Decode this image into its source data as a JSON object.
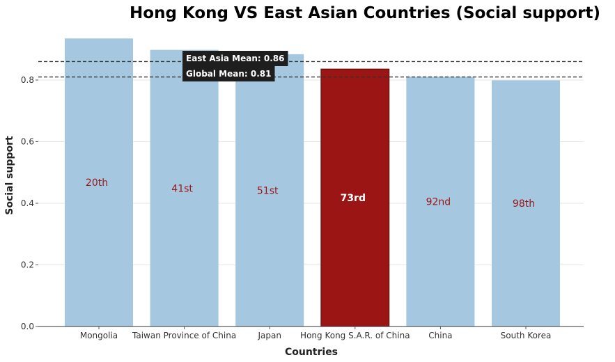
{
  "chart_data": {
    "type": "bar",
    "title": "Hong Kong VS East Asian Countries (Social support)",
    "xlabel": "Countries",
    "ylabel": "Social support",
    "categories": [
      "Mongolia",
      "Taiwan Province of China",
      "Japan",
      "Hong Kong S.A.R. of China",
      "China",
      "South Korea"
    ],
    "values": [
      0.935,
      0.898,
      0.884,
      0.836,
      0.811,
      0.799
    ],
    "ranks": [
      "20th",
      "41st",
      "51st",
      "73rd",
      "92nd",
      "98th"
    ],
    "highlight": "Hong Kong S.A.R. of China",
    "ylim": [
      0,
      0.96
    ],
    "yticks": [
      0.0,
      0.2,
      0.4,
      0.6,
      0.8
    ],
    "ytick_labels": [
      "0.0",
      "0.2",
      "0.4",
      "0.6",
      "0.8"
    ],
    "reference_lines": [
      {
        "label": "East Asia Mean: 0.86",
        "value": 0.86
      },
      {
        "label": "Global Mean: 0.81",
        "value": 0.81
      }
    ],
    "grid": true,
    "colors": {
      "bar": "#a5c8e0",
      "highlight": "#9b1515",
      "rank_text": "#9b1515",
      "ref_line": "#333333",
      "ref_box": "#1e1e1e"
    }
  }
}
